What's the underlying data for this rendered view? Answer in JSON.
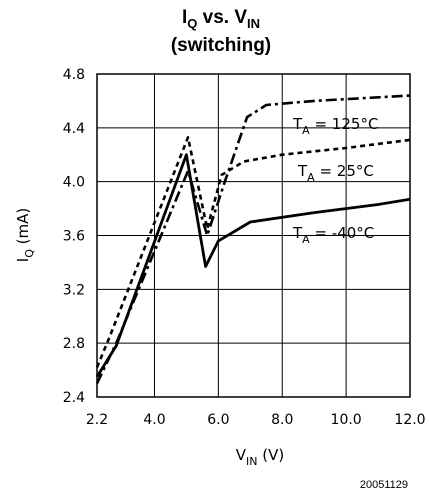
{
  "chart_data": {
    "type": "line",
    "title_line1": {
      "main": "I",
      "main_sub": "Q",
      "mid": " vs. V",
      "mid_sub": "IN"
    },
    "title_line2": "(switching)",
    "xlabel": {
      "main": "V",
      "sub": "IN",
      "rest": " (V)"
    },
    "ylabel": {
      "main": "I",
      "sub": "Q",
      "rest": " (mA)"
    },
    "xlim": [
      2.2,
      12.0
    ],
    "ylim": [
      2.4,
      4.8
    ],
    "x_ticks": [
      2.2,
      4.0,
      6.0,
      8.0,
      10.0,
      12.0
    ],
    "x_tick_labels": [
      "2.2",
      "4.0",
      "6.0",
      "8.0",
      "10.0",
      "12.0"
    ],
    "y_ticks": [
      2.4,
      2.8,
      3.2,
      3.6,
      4.0,
      4.4,
      4.8
    ],
    "y_tick_labels": [
      "2.4",
      "2.8",
      "3.2",
      "3.6",
      "4.0",
      "4.4",
      "4.8"
    ],
    "x_gridlines": [
      4.0,
      6.0,
      8.0,
      10.0
    ],
    "y_gridlines": [
      2.8,
      3.2,
      3.6,
      4.0,
      4.4
    ],
    "grid": true,
    "series": [
      {
        "label": {
          "main": "T",
          "sub": "A",
          "rest": " = 125°C"
        },
        "style": "dash-dot",
        "points": [
          [
            2.2,
            2.5
          ],
          [
            2.8,
            2.8
          ],
          [
            5.05,
            4.08
          ],
          [
            5.65,
            3.6
          ],
          [
            6.2,
            4.0
          ],
          [
            6.9,
            4.48
          ],
          [
            7.5,
            4.57
          ],
          [
            9.0,
            4.6
          ],
          [
            10.5,
            4.62
          ],
          [
            12.0,
            4.64
          ]
        ]
      },
      {
        "label": {
          "main": "T",
          "sub": "A",
          "rest": " = 25°C"
        },
        "style": "dashed",
        "points": [
          [
            2.2,
            2.62
          ],
          [
            2.6,
            2.85
          ],
          [
            5.05,
            4.33
          ],
          [
            5.65,
            3.65
          ],
          [
            6.1,
            4.05
          ],
          [
            6.8,
            4.15
          ],
          [
            8.0,
            4.2
          ],
          [
            10.0,
            4.25
          ],
          [
            12.0,
            4.31
          ]
        ]
      },
      {
        "label": {
          "main": "T",
          "sub": "A",
          "rest": " = -40°C"
        },
        "style": "solid",
        "points": [
          [
            2.2,
            2.55
          ],
          [
            2.8,
            2.78
          ],
          [
            5.0,
            4.2
          ],
          [
            5.6,
            3.37
          ],
          [
            6.0,
            3.56
          ],
          [
            7.0,
            3.7
          ],
          [
            9.0,
            3.77
          ],
          [
            11.0,
            3.83
          ],
          [
            12.0,
            3.87
          ]
        ]
      }
    ]
  },
  "figure_number": "20051129"
}
